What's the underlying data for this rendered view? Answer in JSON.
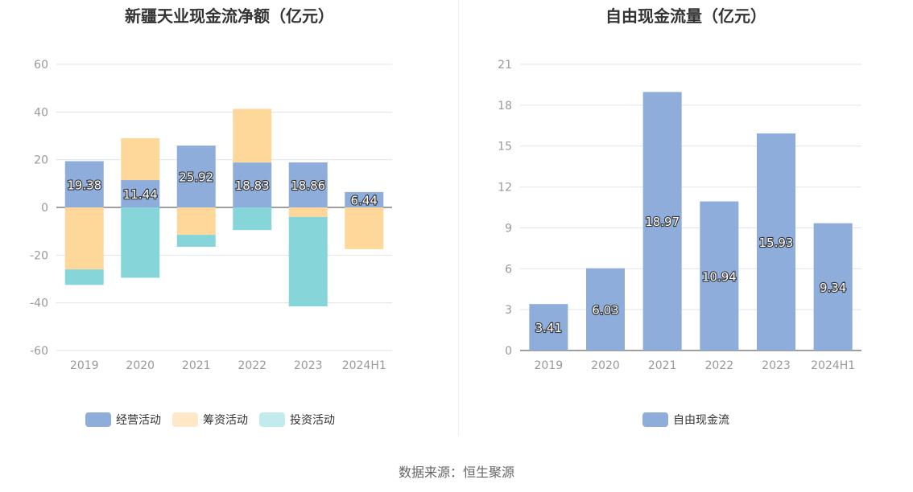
{
  "titles": {
    "left": "新疆天业现金流净额（亿元）",
    "right": "自由现金流量（亿元）"
  },
  "source": "数据来源：恒生聚源",
  "chart_data": [
    {
      "type": "bar",
      "stacked": true,
      "title": "新疆天业现金流净额（亿元）",
      "categories": [
        "2019",
        "2020",
        "2021",
        "2022",
        "2023",
        "2024H1"
      ],
      "ylim": [
        -60,
        60
      ],
      "yticks": [
        60,
        40,
        20,
        0,
        -20,
        -40,
        -60
      ],
      "grid": true,
      "legend_position": "bottom",
      "series": [
        {
          "name": "经营活动",
          "color": "#8eaddb",
          "values": [
            19.38,
            11.44,
            25.92,
            18.83,
            18.86,
            6.44
          ],
          "labels": [
            "19.38",
            "11.44",
            "25.92",
            "18.83",
            "18.86",
            "6.44"
          ]
        },
        {
          "name": "筹资活动",
          "color": "#fed89b",
          "values": [
            -26,
            17.6,
            -11.5,
            22.5,
            -4,
            -17.5
          ]
        },
        {
          "name": "投资活动",
          "color": "#85d5d9",
          "values": [
            -6.5,
            -29.5,
            -5,
            -9.5,
            -37.5,
            0
          ]
        }
      ],
      "legend_colors": {
        "经营活动": "#8eaddb",
        "筹资活动": "#fee8c7",
        "投资活动": "#c2ebee"
      }
    },
    {
      "type": "bar",
      "title": "自由现金流量（亿元）",
      "categories": [
        "2019",
        "2020",
        "2021",
        "2022",
        "2023",
        "2024H1"
      ],
      "ylim": [
        0,
        21
      ],
      "yticks": [
        21,
        18,
        15,
        12,
        9,
        6,
        3,
        0
      ],
      "grid": true,
      "legend_position": "bottom",
      "series": [
        {
          "name": "自由现金流",
          "color": "#8eaddb",
          "values": [
            3.41,
            6.03,
            18.97,
            10.94,
            15.93,
            9.34
          ],
          "labels": [
            "3.41",
            "6.03",
            "18.97",
            "10.94",
            "15.93",
            "9.34"
          ]
        }
      ]
    }
  ]
}
